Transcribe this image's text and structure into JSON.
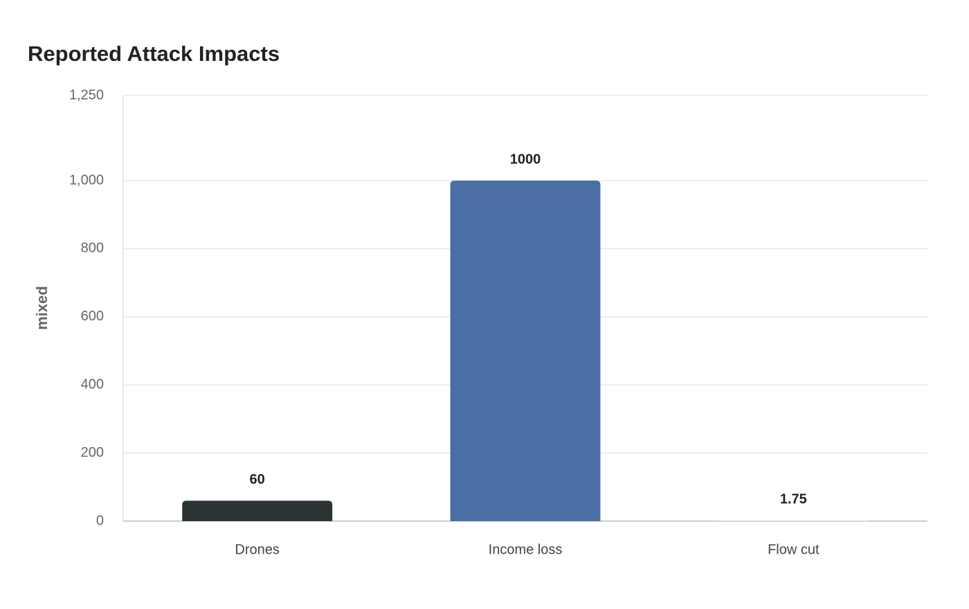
{
  "chart_data": {
    "type": "bar",
    "title": "Reported Attack Impacts",
    "y_label": "mixed",
    "categories": [
      "Drones",
      "Income loss",
      "Flow cut"
    ],
    "values": [
      60,
      1000,
      1.75
    ],
    "colors": [
      "#2d3436",
      "#4a6fa5",
      "#dfe6e9"
    ],
    "ylim": [
      0,
      1250
    ],
    "yticks": [
      0,
      200,
      400,
      600,
      800,
      {
        "value": 1000,
        "label": "1,000"
      },
      {
        "value": 1250,
        "label": "1,250"
      }
    ],
    "grid": true
  }
}
